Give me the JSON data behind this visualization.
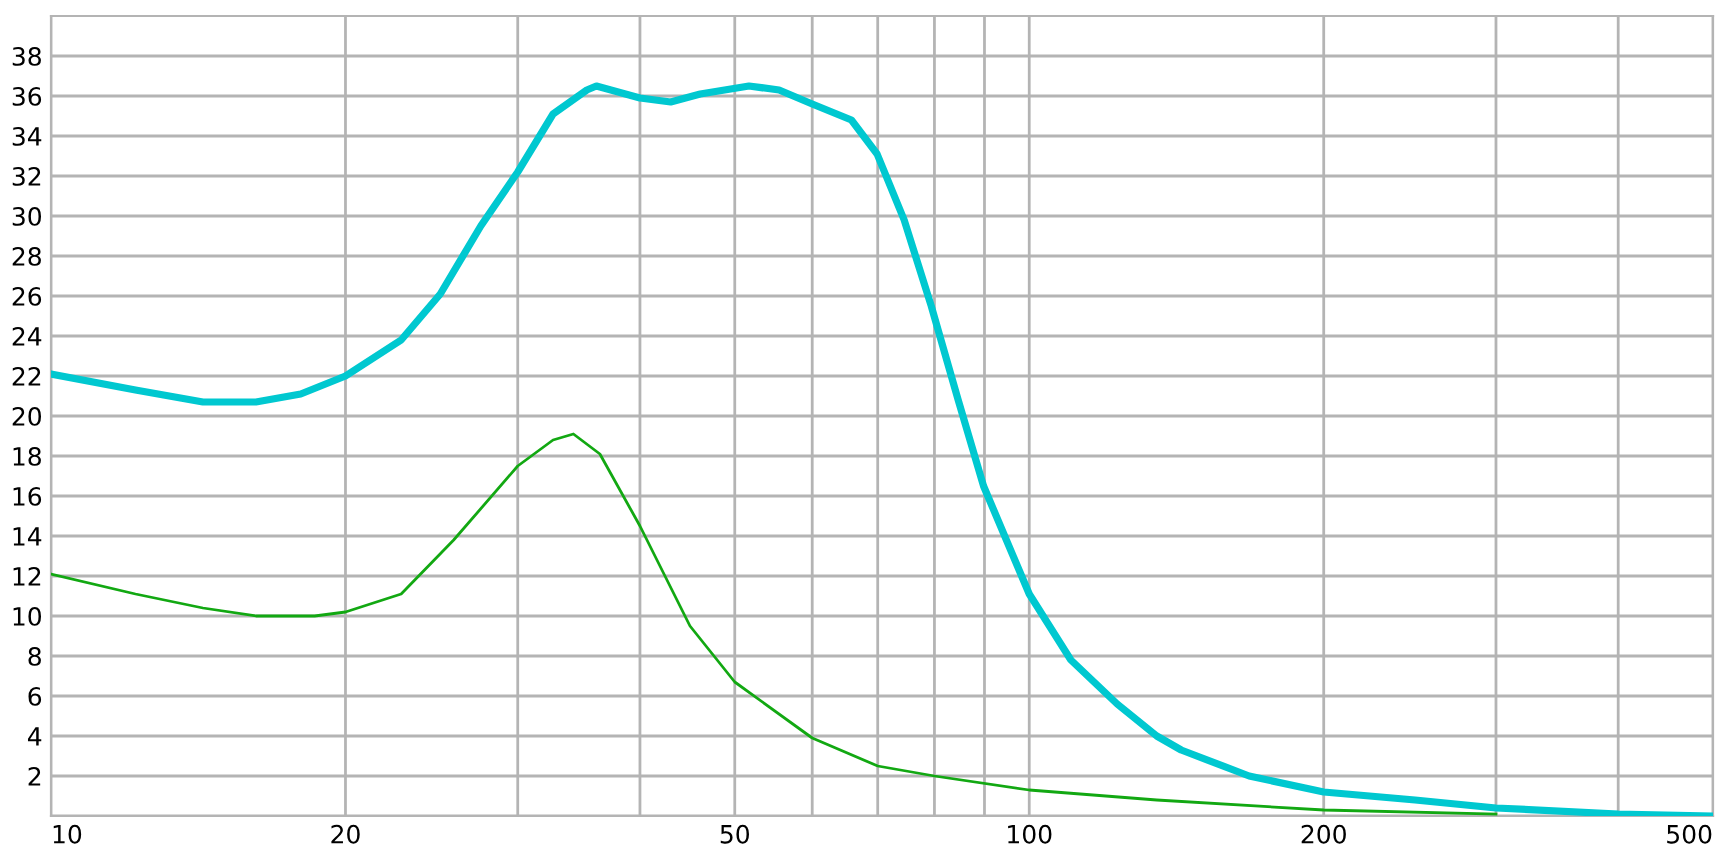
{
  "chart_data": {
    "type": "line",
    "log": "x",
    "grid": true,
    "marker": "none",
    "line_style": "solid",
    "legend": false,
    "xlim": [
      10,
      500
    ],
    "ylim": [
      0,
      40
    ],
    "xticks": [
      10,
      20,
      {
        "value": 30,
        "label": null
      },
      {
        "value": 40,
        "label": null
      },
      50,
      {
        "value": 60,
        "label": null
      },
      {
        "value": 70,
        "label": null
      },
      {
        "value": 80,
        "label": null
      },
      {
        "value": 90,
        "label": null
      },
      100,
      200,
      {
        "value": 300,
        "label": null
      },
      {
        "value": 400,
        "label": null
      },
      500
    ],
    "yticks": [
      {
        "value": 0,
        "label": null
      },
      2,
      4,
      6,
      8,
      10,
      12,
      14,
      16,
      18,
      20,
      22,
      24,
      26,
      28,
      30,
      32,
      34,
      36,
      38
    ],
    "series": [
      {
        "color": "#00c8d0",
        "x": [
          10,
          12.2,
          14.3,
          16.2,
          18,
          20,
          22.8,
          25,
          27.5,
          30,
          32.6,
          35.3,
          36.1,
          40,
          43,
          46.1,
          51.7,
          55.5,
          60,
          65.8,
          69.9,
          74.5,
          79.4,
          84.6,
          89.8,
          100,
          110.3,
          123,
          135,
          143,
          167.8,
          200,
          248,
          300,
          400,
          500
        ],
        "values": [
          22.1,
          21.3,
          20.7,
          20.7,
          21.1,
          22.0,
          23.8,
          26.1,
          29.5,
          32.2,
          35.1,
          36.3,
          36.5,
          35.9,
          35.7,
          36.1,
          36.5,
          36.3,
          35.6,
          34.8,
          33.1,
          29.8,
          25.5,
          20.8,
          16.5,
          11.1,
          7.8,
          5.6,
          4.0,
          3.3,
          2.0,
          1.2,
          0.8,
          0.4,
          0.1,
          0.0
        ]
      },
      {
        "color": "#12a812",
        "x": [
          10,
          12.2,
          14.3,
          16.2,
          18.6,
          20,
          22.8,
          25.8,
          30,
          32.6,
          34.2,
          36.4,
          40,
          45,
          50,
          60,
          70,
          80,
          100,
          135,
          200,
          300
        ],
        "values": [
          12.1,
          11.1,
          10.4,
          10.0,
          10.0,
          10.2,
          11.1,
          13.8,
          17.5,
          18.8,
          19.1,
          18.1,
          14.5,
          9.5,
          6.7,
          3.9,
          2.5,
          2.0,
          1.3,
          0.8,
          0.3,
          0.1
        ]
      }
    ]
  }
}
